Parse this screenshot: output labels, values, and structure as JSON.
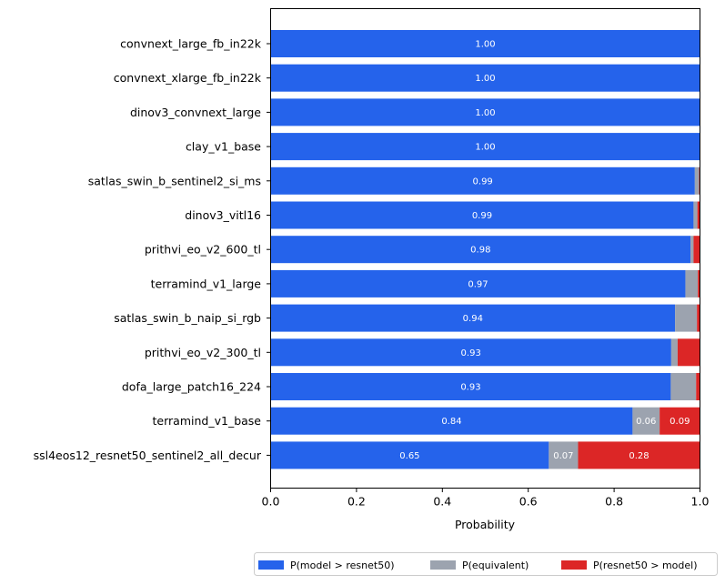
{
  "chart_data": {
    "type": "bar",
    "orientation": "horizontal",
    "stacked": true,
    "categories": [
      "convnext_large_fb_in22k",
      "convnext_xlarge_fb_in22k",
      "dinov3_convnext_large",
      "clay_v1_base",
      "satlas_swin_b_sentinel2_si_ms",
      "dinov3_vitl16",
      "prithvi_eo_v2_600_tl",
      "terramind_v1_large",
      "satlas_swin_b_naip_si_rgb",
      "prithvi_eo_v2_300_tl",
      "dofa_large_patch16_224",
      "terramind_v1_base",
      "ssl4eos12_resnet50_sentinel2_all_decur"
    ],
    "series": [
      {
        "name": "P(model > resnet50)",
        "color": "#2563eb",
        "values": [
          1.0,
          1.0,
          1.0,
          1.0,
          0.988,
          0.985,
          0.978,
          0.966,
          0.942,
          0.933,
          0.932,
          0.843,
          0.648
        ],
        "labels": [
          "1.00",
          "1.00",
          "1.00",
          "1.00",
          "0.99",
          "0.99",
          "0.98",
          "0.97",
          "0.94",
          "0.93",
          "0.93",
          "0.84",
          "0.65"
        ]
      },
      {
        "name": "P(equivalent)",
        "color": "#9ca3af",
        "values": [
          0.0,
          0.0,
          0.0,
          0.0,
          0.01,
          0.009,
          0.007,
          0.029,
          0.051,
          0.015,
          0.059,
          0.063,
          0.068
        ],
        "labels": [
          "",
          "",
          "",
          "",
          "",
          "",
          "",
          "",
          "",
          "",
          "",
          "0.06",
          "0.07"
        ]
      },
      {
        "name": "P(resnet50 > model)",
        "color": "#dc2626",
        "values": [
          0.0,
          0.0,
          0.0,
          0.0,
          0.002,
          0.006,
          0.015,
          0.005,
          0.007,
          0.052,
          0.009,
          0.094,
          0.284
        ],
        "labels": [
          "",
          "",
          "",
          "",
          "",
          "",
          "",
          "",
          "",
          "",
          "",
          "0.09",
          "0.28"
        ]
      }
    ],
    "xlabel": "Probability",
    "ylabel": "",
    "xlim": [
      0.0,
      1.0
    ],
    "xticks": [
      "0.0",
      "0.2",
      "0.4",
      "0.6",
      "0.8",
      "1.0"
    ],
    "grid": false,
    "legend_position": "bottom"
  }
}
